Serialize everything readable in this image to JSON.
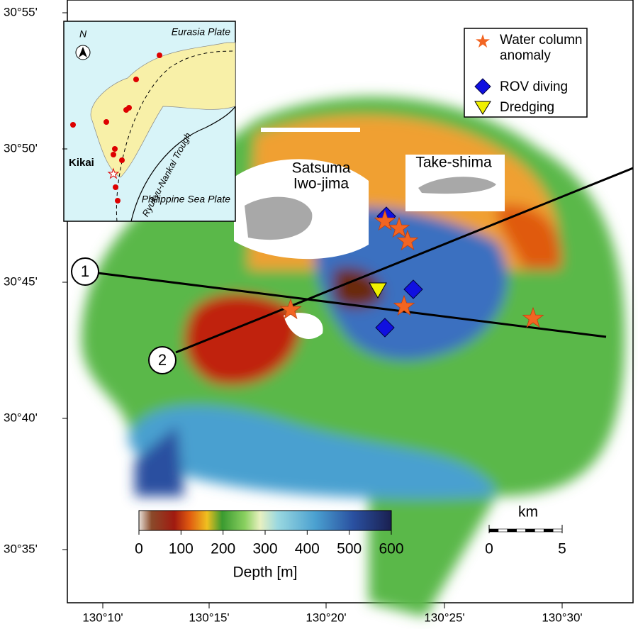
{
  "map": {
    "x_axis_labels": [
      "130°10'",
      "130°15'",
      "130°20'",
      "130°25'",
      "130°30'"
    ],
    "y_axis_labels": [
      "30°55'",
      "30°50'",
      "30°45'",
      "30°40'",
      "30°35'"
    ],
    "place_labels": {
      "satsuma": "Satsuma",
      "iwojima": "Iwo-jima",
      "takeshima": "Take-shima"
    },
    "profiles": [
      "1",
      "2"
    ]
  },
  "legend": [
    "Water column anomaly",
    "ROV diving",
    "Dredging"
  ],
  "inset": {
    "north": "N",
    "eurasia": "Eurasia Plate",
    "kikai": "Kikai",
    "trough": "Ryukyu-Nankai Trough",
    "philippine": "Philippine Sea Plate"
  },
  "colorbar": {
    "title": "Depth [m]",
    "range": [
      0,
      600
    ],
    "ticks": [
      0,
      100,
      200,
      300,
      400,
      500,
      600
    ]
  },
  "scalebar": {
    "unit": "km",
    "range": [
      0,
      5
    ],
    "ticks": [
      0,
      5
    ]
  }
}
